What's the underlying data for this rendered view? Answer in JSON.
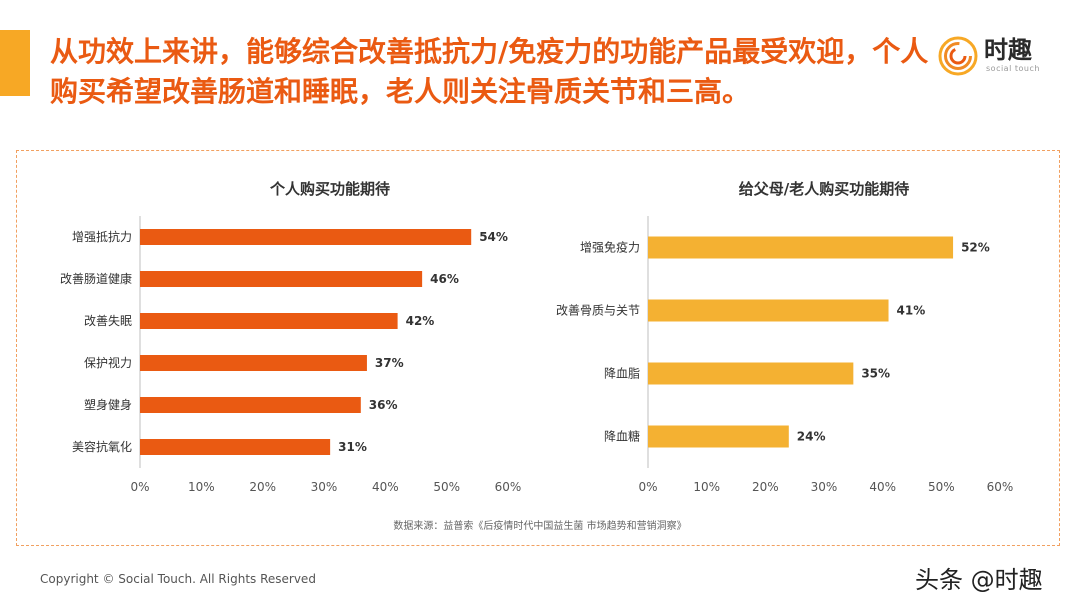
{
  "headline": "从功效上来讲，能够综合改善抵抗力/免疫力的功能产品最受欢迎，个人购买希望改善肠道和睡眠，老人则关注骨质关节和三高。",
  "logo": {
    "name": "时趣",
    "subtitle": "social touch"
  },
  "colors": {
    "accent": "#f7a825",
    "headline": "#ea5a12",
    "bar_personal": "#ea5a12",
    "bar_parents": "#f4b132",
    "frame": "#f1a060"
  },
  "chart_data": [
    {
      "type": "bar",
      "orientation": "horizontal",
      "title": "个人购买功能期待",
      "categories": [
        "增强抵抗力",
        "改善肠道健康",
        "改善失眠",
        "保护视力",
        "塑身健身",
        "美容抗氧化"
      ],
      "values": [
        54,
        46,
        42,
        37,
        36,
        31
      ],
      "data_labels": [
        "54%",
        "46%",
        "42%",
        "37%",
        "36%",
        "31%"
      ],
      "xlim": [
        0,
        60
      ],
      "x_ticks": [
        0,
        10,
        20,
        30,
        40,
        50,
        60
      ],
      "x_tick_labels": [
        "0%",
        "10%",
        "20%",
        "30%",
        "40%",
        "50%",
        "60%"
      ],
      "grid": false,
      "legend": "none"
    },
    {
      "type": "bar",
      "orientation": "horizontal",
      "title": "给父母/老人购买功能期待",
      "categories": [
        "增强免疫力",
        "改善骨质与关节",
        "降血脂",
        "降血糖"
      ],
      "values": [
        52,
        41,
        35,
        24
      ],
      "data_labels": [
        "52%",
        "41%",
        "35%",
        "24%"
      ],
      "xlim": [
        0,
        60
      ],
      "x_ticks": [
        0,
        10,
        20,
        30,
        40,
        50,
        60
      ],
      "x_tick_labels": [
        "0%",
        "10%",
        "20%",
        "30%",
        "40%",
        "50%",
        "60%"
      ],
      "grid": false,
      "legend": "none"
    }
  ],
  "source": "数据来源：益普索《后疫情时代中国益生菌 市场趋势和营销洞察》",
  "footer": {
    "copyright": "Copyright © Social Touch. All Rights Reserved",
    "watermark": "头条 @时趣"
  }
}
